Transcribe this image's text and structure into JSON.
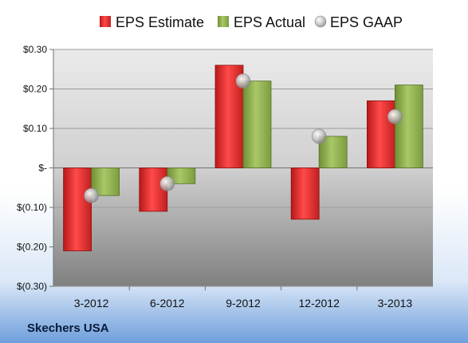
{
  "chart_data": {
    "type": "bar",
    "categories": [
      "3-2012",
      "6-2012",
      "9-2012",
      "12-2012",
      "3-2013"
    ],
    "series": [
      {
        "name": "EPS Estimate",
        "type": "bar",
        "values": [
          -0.21,
          -0.11,
          0.26,
          -0.13,
          0.17
        ],
        "color": "#d42a2a"
      },
      {
        "name": "EPS Actual",
        "type": "bar",
        "values": [
          -0.07,
          -0.04,
          0.22,
          0.08,
          0.21
        ],
        "color": "#8cae4a"
      },
      {
        "name": "EPS GAAP",
        "type": "scatter",
        "values": [
          -0.07,
          -0.04,
          0.22,
          0.08,
          0.13
        ],
        "color": "#b0b0b0"
      }
    ],
    "ylim": [
      -0.3,
      0.3
    ],
    "yticks": [
      0.3,
      0.2,
      0.1,
      0,
      -0.1,
      -0.2,
      -0.3
    ],
    "ytick_labels": [
      "$0.30",
      "$0.20",
      "$0.10",
      "$-",
      "$(0.10)",
      "$(0.20)",
      "$(0.30)"
    ],
    "grid": true,
    "legend_position": "top"
  },
  "footer": {
    "company": "Skechers USA"
  }
}
